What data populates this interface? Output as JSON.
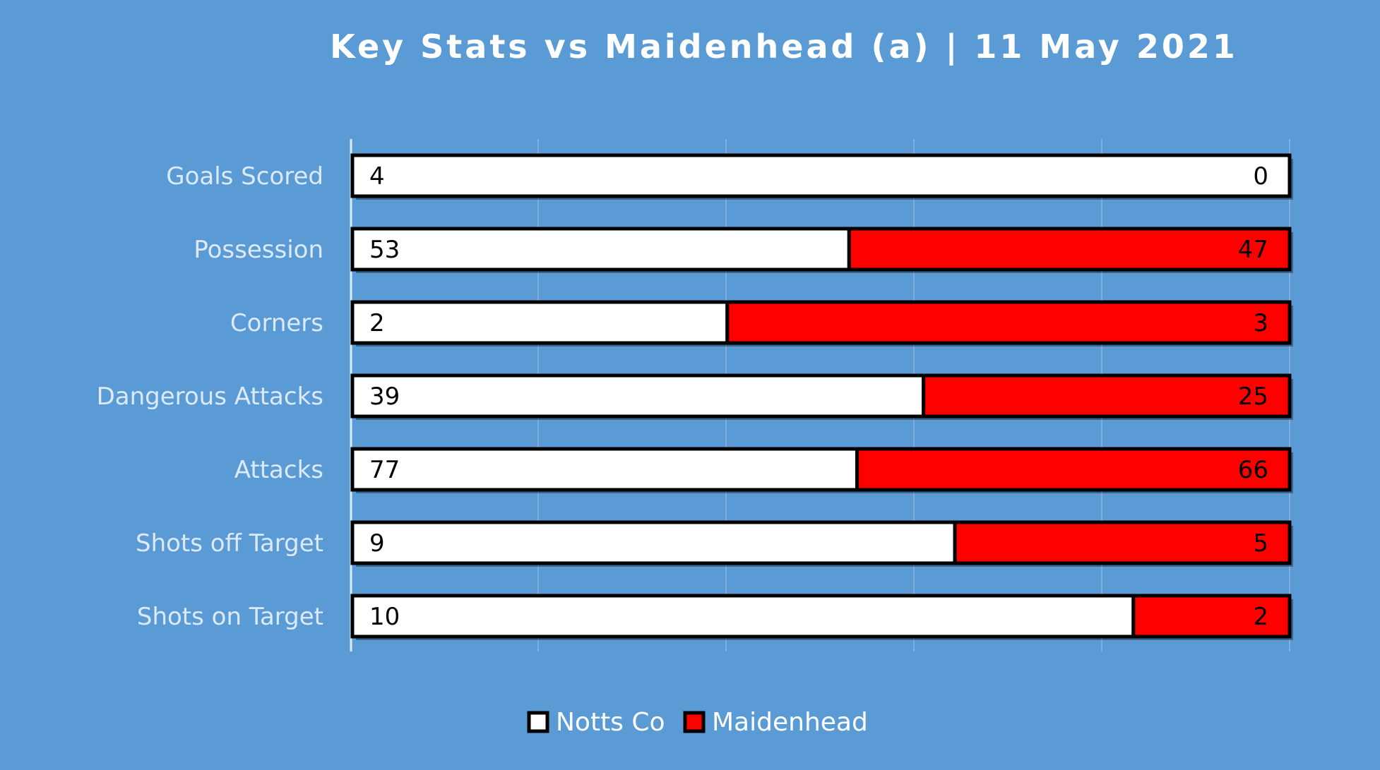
{
  "chart_data": {
    "type": "bar",
    "orientation": "horizontal",
    "stacking": "percent",
    "title": "Key Stats vs Maidenhead (a) | 11 May 2021",
    "categories": [
      "Goals Scored",
      "Possession",
      "Corners",
      "Dangerous Attacks",
      "Attacks",
      "Shots off Target",
      "Shots on Target"
    ],
    "series": [
      {
        "name": "Notts Co",
        "color": "#ffffff",
        "values": [
          4,
          53,
          2,
          39,
          77,
          9,
          10
        ]
      },
      {
        "name": "Maidenhead",
        "color": "#ff0000",
        "values": [
          0,
          47,
          3,
          25,
          66,
          5,
          2
        ]
      }
    ],
    "xlim": [
      0,
      100
    ],
    "grid": true,
    "legend": "bottom"
  }
}
